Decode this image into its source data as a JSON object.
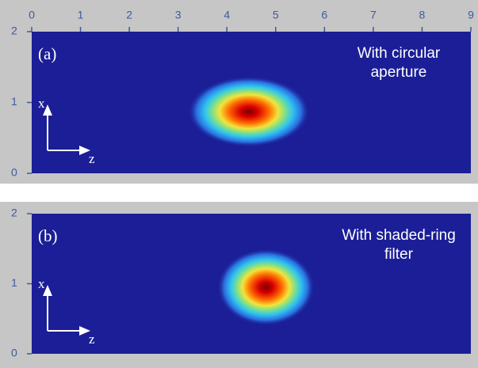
{
  "chart_data": [
    {
      "type": "heatmap",
      "panel_label": "(a)",
      "annotation": [
        "With circular",
        "aperture"
      ],
      "xlim": [
        0,
        9
      ],
      "xticks": [
        0,
        1,
        2,
        3,
        4,
        5,
        6,
        7,
        8,
        9
      ],
      "ylim": [
        0,
        2
      ],
      "yticks": [
        0,
        1,
        2
      ],
      "axis_letters": {
        "vertical": "x",
        "horizontal": "z"
      },
      "spot": {
        "x": 4.45,
        "y": 0.87,
        "rx": 1.25,
        "ry": 0.5
      }
    },
    {
      "type": "heatmap",
      "panel_label": "(b)",
      "annotation": [
        "With shaded-ring",
        "filter"
      ],
      "xlim": [
        0,
        9
      ],
      "ylim": [
        0,
        2
      ],
      "yticks": [
        0,
        1,
        2
      ],
      "axis_letters": {
        "vertical": "x",
        "horizontal": "z"
      },
      "spot": {
        "x": 4.8,
        "y": 0.95,
        "rx": 1.0,
        "ry": 0.55
      }
    }
  ]
}
